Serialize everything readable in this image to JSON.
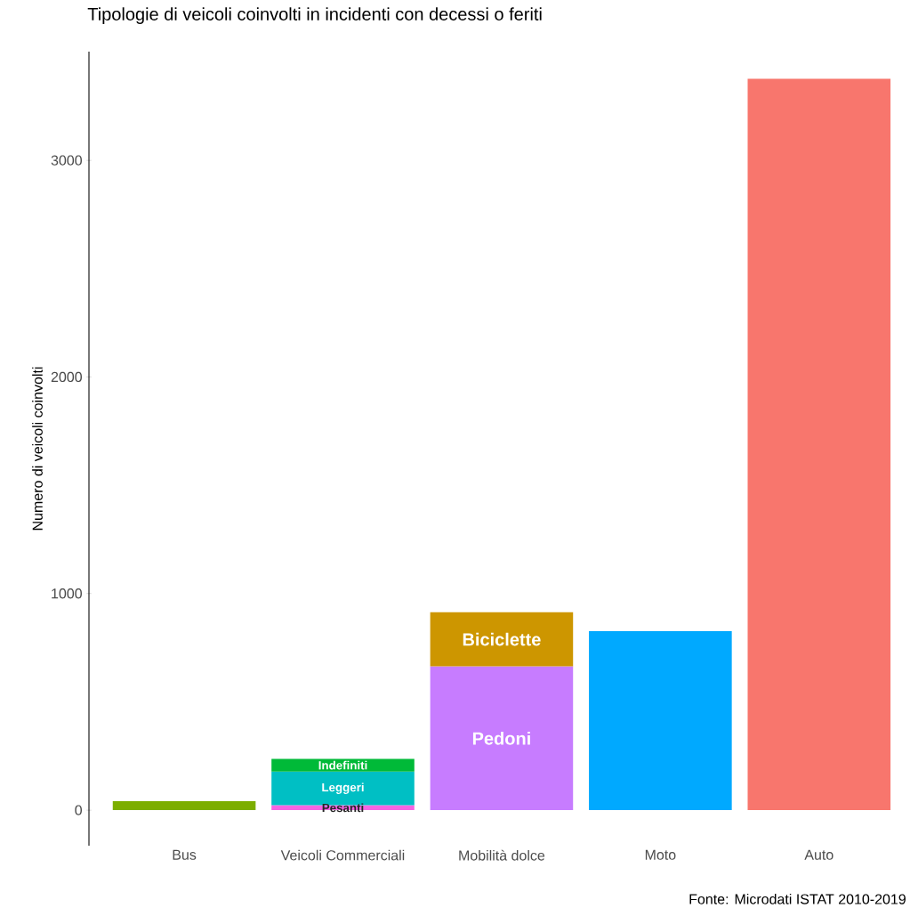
{
  "chart_data": {
    "type": "bar",
    "stacked": true,
    "title": "Tipologie di veicoli coinvolti in incidenti con decessi o feriti",
    "ylabel": "Numero di veicoli coinvolti",
    "annotations": [
      "Fonte: Microdati ISTAT 2010-2019"
    ],
    "categories": [
      "Bus",
      "Veicoli Commerciali",
      "Mobilità dolce",
      "Moto",
      "Auto"
    ],
    "ylim": [
      -164,
      3502
    ],
    "yticks": [
      0,
      1000,
      2000,
      3000
    ],
    "series": [
      {
        "color": "#7cae00",
        "values": [
          41,
          null,
          null,
          null,
          null
        ]
      },
      {
        "name": "Pesanti",
        "color": "#f564e3",
        "values": [
          null,
          23,
          null,
          null,
          null
        ]
      },
      {
        "name": "Leggeri",
        "color": "#00bfc4",
        "values": [
          null,
          155,
          null,
          null,
          null
        ]
      },
      {
        "name": "Indefiniti",
        "color": "#00ba38",
        "values": [
          null,
          59,
          null,
          null,
          null
        ]
      },
      {
        "name": "Pedoni",
        "color": "#c77cff",
        "values": [
          null,
          null,
          664,
          null,
          null
        ]
      },
      {
        "name": "Biciclette",
        "color": "#cd9600",
        "values": [
          null,
          null,
          250,
          null,
          null
        ]
      },
      {
        "color": "#00a9ff",
        "values": [
          null,
          null,
          null,
          826,
          null
        ]
      },
      {
        "color": "#f8766d",
        "values": [
          null,
          null,
          null,
          null,
          3377
        ]
      }
    ]
  }
}
